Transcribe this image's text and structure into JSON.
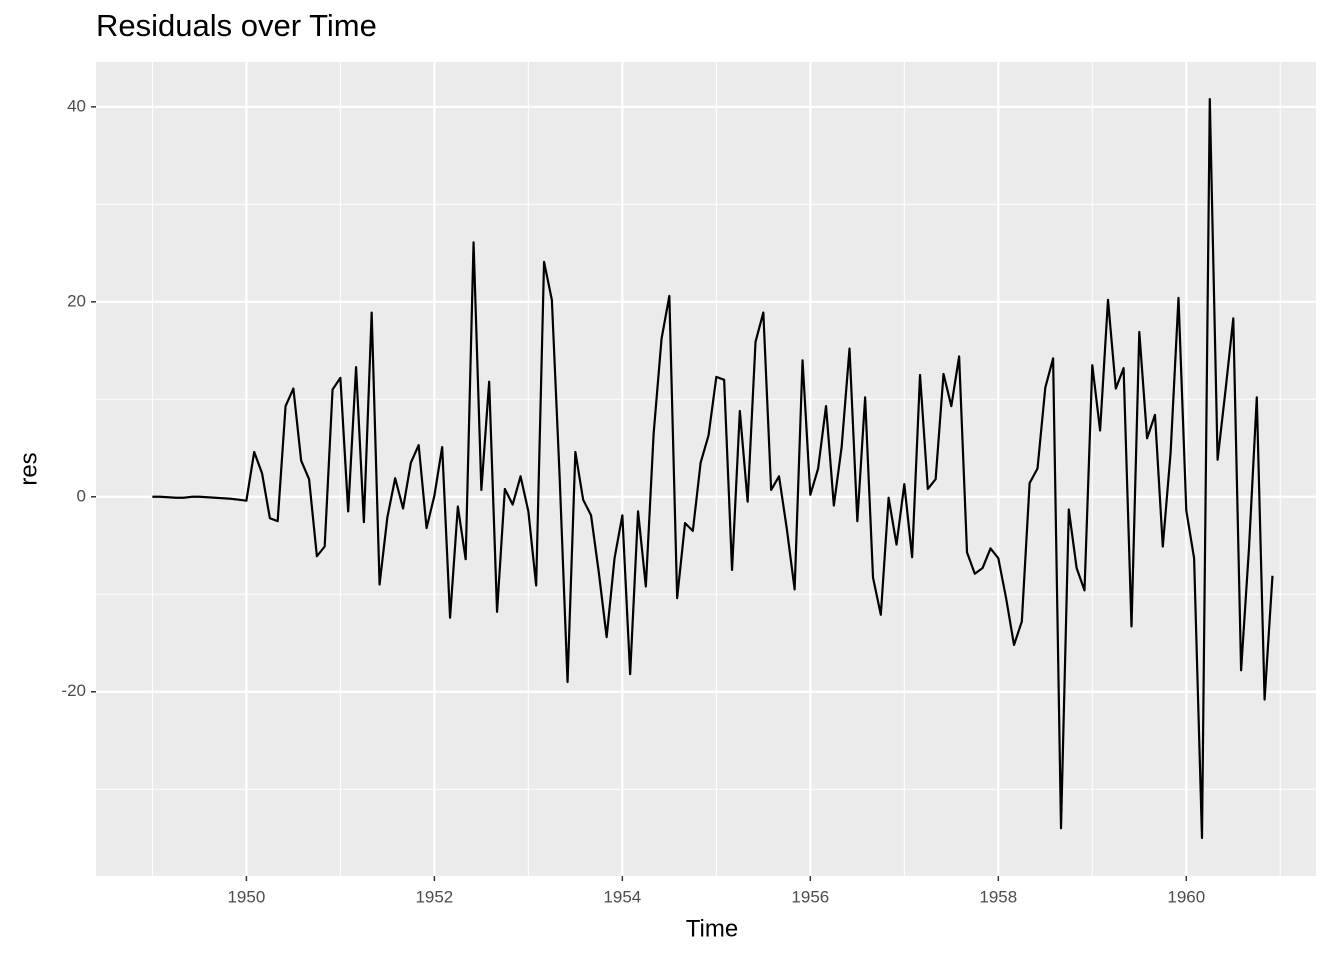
{
  "chart_data": {
    "type": "line",
    "title": "Residuals over Time",
    "x_label": "Time",
    "y_label": "res",
    "x": [
      1949,
      1949.083,
      1949.167,
      1949.25,
      1949.333,
      1949.417,
      1949.5,
      1949.583,
      1949.667,
      1949.75,
      1949.833,
      1949.917,
      1950,
      1950.083,
      1950.167,
      1950.25,
      1950.333,
      1950.417,
      1950.5,
      1950.583,
      1950.667,
      1950.75,
      1950.833,
      1950.917,
      1951,
      1951.083,
      1951.167,
      1951.25,
      1951.333,
      1951.417,
      1951.5,
      1951.583,
      1951.667,
      1951.75,
      1951.833,
      1951.917,
      1952,
      1952.083,
      1952.167,
      1952.25,
      1952.333,
      1952.417,
      1952.5,
      1952.583,
      1952.667,
      1952.75,
      1952.833,
      1952.917,
      1953,
      1953.083,
      1953.167,
      1953.25,
      1953.333,
      1953.417,
      1953.5,
      1953.583,
      1953.667,
      1953.75,
      1953.833,
      1953.917,
      1954,
      1954.083,
      1954.167,
      1954.25,
      1954.333,
      1954.417,
      1954.5,
      1954.583,
      1954.667,
      1954.75,
      1954.833,
      1954.917,
      1955,
      1955.083,
      1955.167,
      1955.25,
      1955.333,
      1955.417,
      1955.5,
      1955.583,
      1955.667,
      1955.75,
      1955.833,
      1955.917,
      1956,
      1956.083,
      1956.167,
      1956.25,
      1956.333,
      1956.417,
      1956.5,
      1956.583,
      1956.667,
      1956.75,
      1956.833,
      1956.917,
      1957,
      1957.083,
      1957.167,
      1957.25,
      1957.333,
      1957.417,
      1957.5,
      1957.583,
      1957.667,
      1957.75,
      1957.833,
      1957.917,
      1958,
      1958.083,
      1958.167,
      1958.25,
      1958.333,
      1958.417,
      1958.5,
      1958.583,
      1958.667,
      1958.75,
      1958.833,
      1958.917,
      1959,
      1959.083,
      1959.167,
      1959.25,
      1959.333,
      1959.417,
      1959.5,
      1959.583,
      1959.667,
      1959.75,
      1959.833,
      1959.917,
      1960,
      1960.083,
      1960.167,
      1960.25,
      1960.333,
      1960.417,
      1960.5,
      1960.583,
      1960.667,
      1960.75,
      1960.833,
      1960.917
    ],
    "values": [
      0,
      0,
      -0.05,
      -0.1,
      -0.1,
      0,
      0,
      -0.05,
      -0.1,
      -0.15,
      -0.2,
      -0.3,
      -0.4,
      4.6,
      2.4,
      -2.2,
      -2.5,
      9.3,
      11.1,
      3.7,
      1.8,
      -6.1,
      -5.1,
      11.0,
      12.2,
      -1.5,
      13.3,
      -2.6,
      18.9,
      -9.0,
      -2.1,
      1.9,
      -1.2,
      3.5,
      5.3,
      -3.2,
      0.1,
      5.1,
      -12.4,
      -1.0,
      -6.4,
      26.1,
      0.7,
      11.8,
      -11.8,
      0.8,
      -0.8,
      2.1,
      -1.5,
      -9.1,
      24.1,
      20.2,
      2.0,
      -19.0,
      4.6,
      -0.3,
      -1.9,
      -7.8,
      -14.4,
      -6.3,
      -1.9,
      -18.2,
      -1.5,
      -9.2,
      6.5,
      16.2,
      20.6,
      -10.4,
      -2.7,
      -3.5,
      3.5,
      6.3,
      12.3,
      12.0,
      -7.5,
      8.8,
      -0.5,
      15.9,
      18.9,
      0.7,
      2.1,
      -3.3,
      -9.5,
      14.0,
      0.2,
      2.9,
      9.3,
      -0.9,
      5.1,
      15.2,
      -2.5,
      10.2,
      -8.3,
      -12.1,
      -0.1,
      -4.9,
      1.3,
      -6.2,
      12.5,
      0.8,
      1.8,
      12.6,
      9.3,
      14.4,
      -5.7,
      -7.9,
      -7.3,
      -5.3,
      -6.3,
      -10.4,
      -15.2,
      -12.8,
      1.4,
      2.9,
      11.2,
      14.2,
      -34.0,
      -1.3,
      -7.3,
      -9.6,
      13.5,
      6.8,
      20.2,
      11.1,
      13.2,
      -13.3,
      16.9,
      6.0,
      8.4,
      -5.1,
      4.5,
      20.4,
      -1.4,
      -6.3,
      -35.0,
      40.8,
      3.8,
      10.9,
      18.3,
      -17.8,
      -5.3,
      10.2,
      -20.8,
      -8.1
    ],
    "color": "#000000",
    "xlim": [
      1948.4,
      1961.38
    ],
    "xticks": [
      1950,
      1952,
      1954,
      1956,
      1958,
      1960
    ],
    "x_minor_ticks": [
      1949,
      1951,
      1953,
      1955,
      1957,
      1959,
      1961
    ],
    "ylim": [
      -38.9,
      44.6
    ],
    "yticks": [
      -20,
      0,
      20,
      40
    ],
    "y_minor_ticks": [
      -30,
      -10,
      10,
      30
    ],
    "grid": true
  }
}
